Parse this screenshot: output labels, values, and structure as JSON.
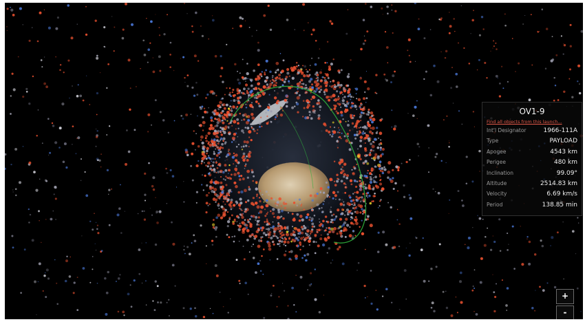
{
  "satellite": {
    "name": "OV1-9",
    "launch_link": "Find all objects from this launch...",
    "rows": [
      {
        "label": "Int'l Designator",
        "value": "1966-111A"
      },
      {
        "label": "Type",
        "value": "PAYLOAD"
      },
      {
        "label": "Apogee",
        "value": "4543 km"
      },
      {
        "label": "Perigee",
        "value": "480 km"
      },
      {
        "label": "Inclination",
        "value": "99.09°"
      },
      {
        "label": "Altitude",
        "value": "2514.83 km"
      },
      {
        "label": "Velocity",
        "value": "6.69 km/s"
      },
      {
        "label": "Period",
        "value": "138.85 min"
      }
    ]
  },
  "controls": {
    "zoom_in": "+",
    "zoom_out": "-"
  },
  "colors": {
    "background": "#000000",
    "debris_red": "#e8502f",
    "payload_gray": "#a0a0b0",
    "payload_blue": "#4a78d8",
    "orbit_green": "#2fae3c",
    "link_red": "#e45a4a"
  },
  "icons": {
    "earth": "earth-globe",
    "orbit": "orbit-path"
  }
}
